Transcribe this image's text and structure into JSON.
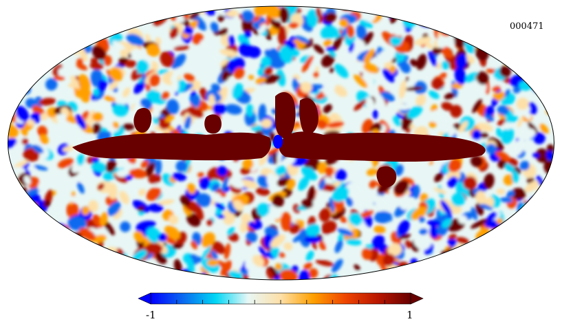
{
  "map": {
    "id_label": "000471",
    "projection": "mollweide",
    "background_color": "#ffffff",
    "outline_color": "#000000"
  },
  "colorbar": {
    "min_label": "-1",
    "max_label": "1",
    "range": [
      -1,
      1
    ],
    "tick_count": 11,
    "colormap": [
      "#0000ff",
      "#0a6af0",
      "#00d7f5",
      "#e8f7f5",
      "#fde0a8",
      "#ffa000",
      "#ee4400",
      "#b81600",
      "#680000"
    ]
  },
  "galactic_band_color": "#680000"
}
